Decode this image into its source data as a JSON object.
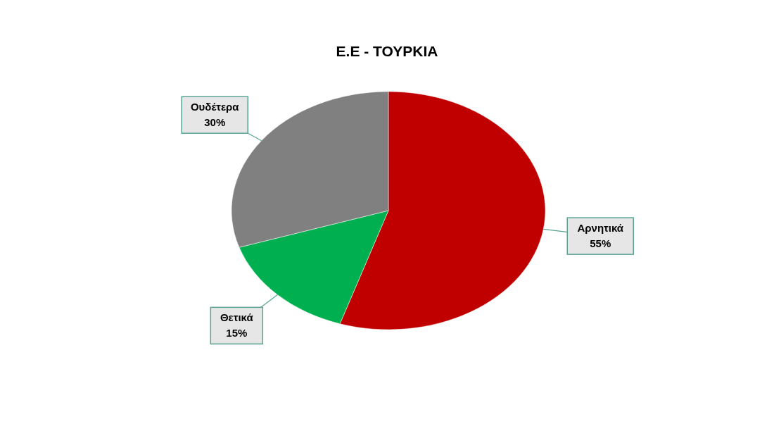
{
  "chart_data": {
    "type": "pie",
    "title": "Ε.Ε - ΤΟΥΡΚΙΑ",
    "categories": [
      "Αρνητικά",
      "Θετικά",
      "Ουδέτερα"
    ],
    "values": [
      55,
      15,
      30
    ],
    "value_labels": [
      "55%",
      "15%",
      "30%"
    ],
    "colors": [
      "#c00000",
      "#00b050",
      "#808080"
    ]
  }
}
